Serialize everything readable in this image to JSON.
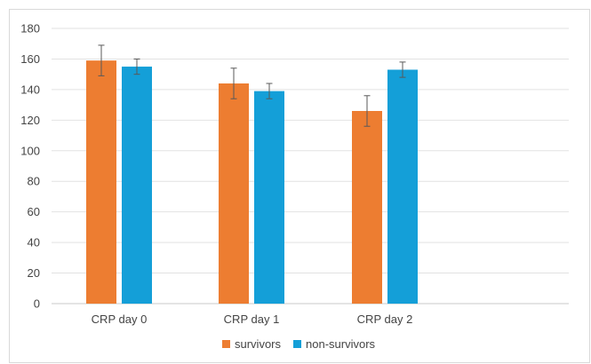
{
  "chart_data": {
    "type": "bar",
    "categories": [
      "CRP day 0",
      "CRP day 1",
      "CRP day 2"
    ],
    "series": [
      {
        "name": "survivors",
        "values": [
          159,
          144,
          126
        ],
        "error": [
          10,
          10,
          10
        ],
        "color": "#ED7D31"
      },
      {
        "name": "non-survivors",
        "values": [
          155,
          139,
          153
        ],
        "error": [
          5,
          5,
          5
        ],
        "color": "#149FD8"
      }
    ],
    "ylim": [
      0,
      180
    ],
    "yticks": [
      0,
      20,
      40,
      60,
      80,
      100,
      120,
      140,
      160,
      180
    ],
    "grid": true,
    "legend_position": "bottom",
    "title": "",
    "xlabel": "",
    "ylabel": ""
  }
}
